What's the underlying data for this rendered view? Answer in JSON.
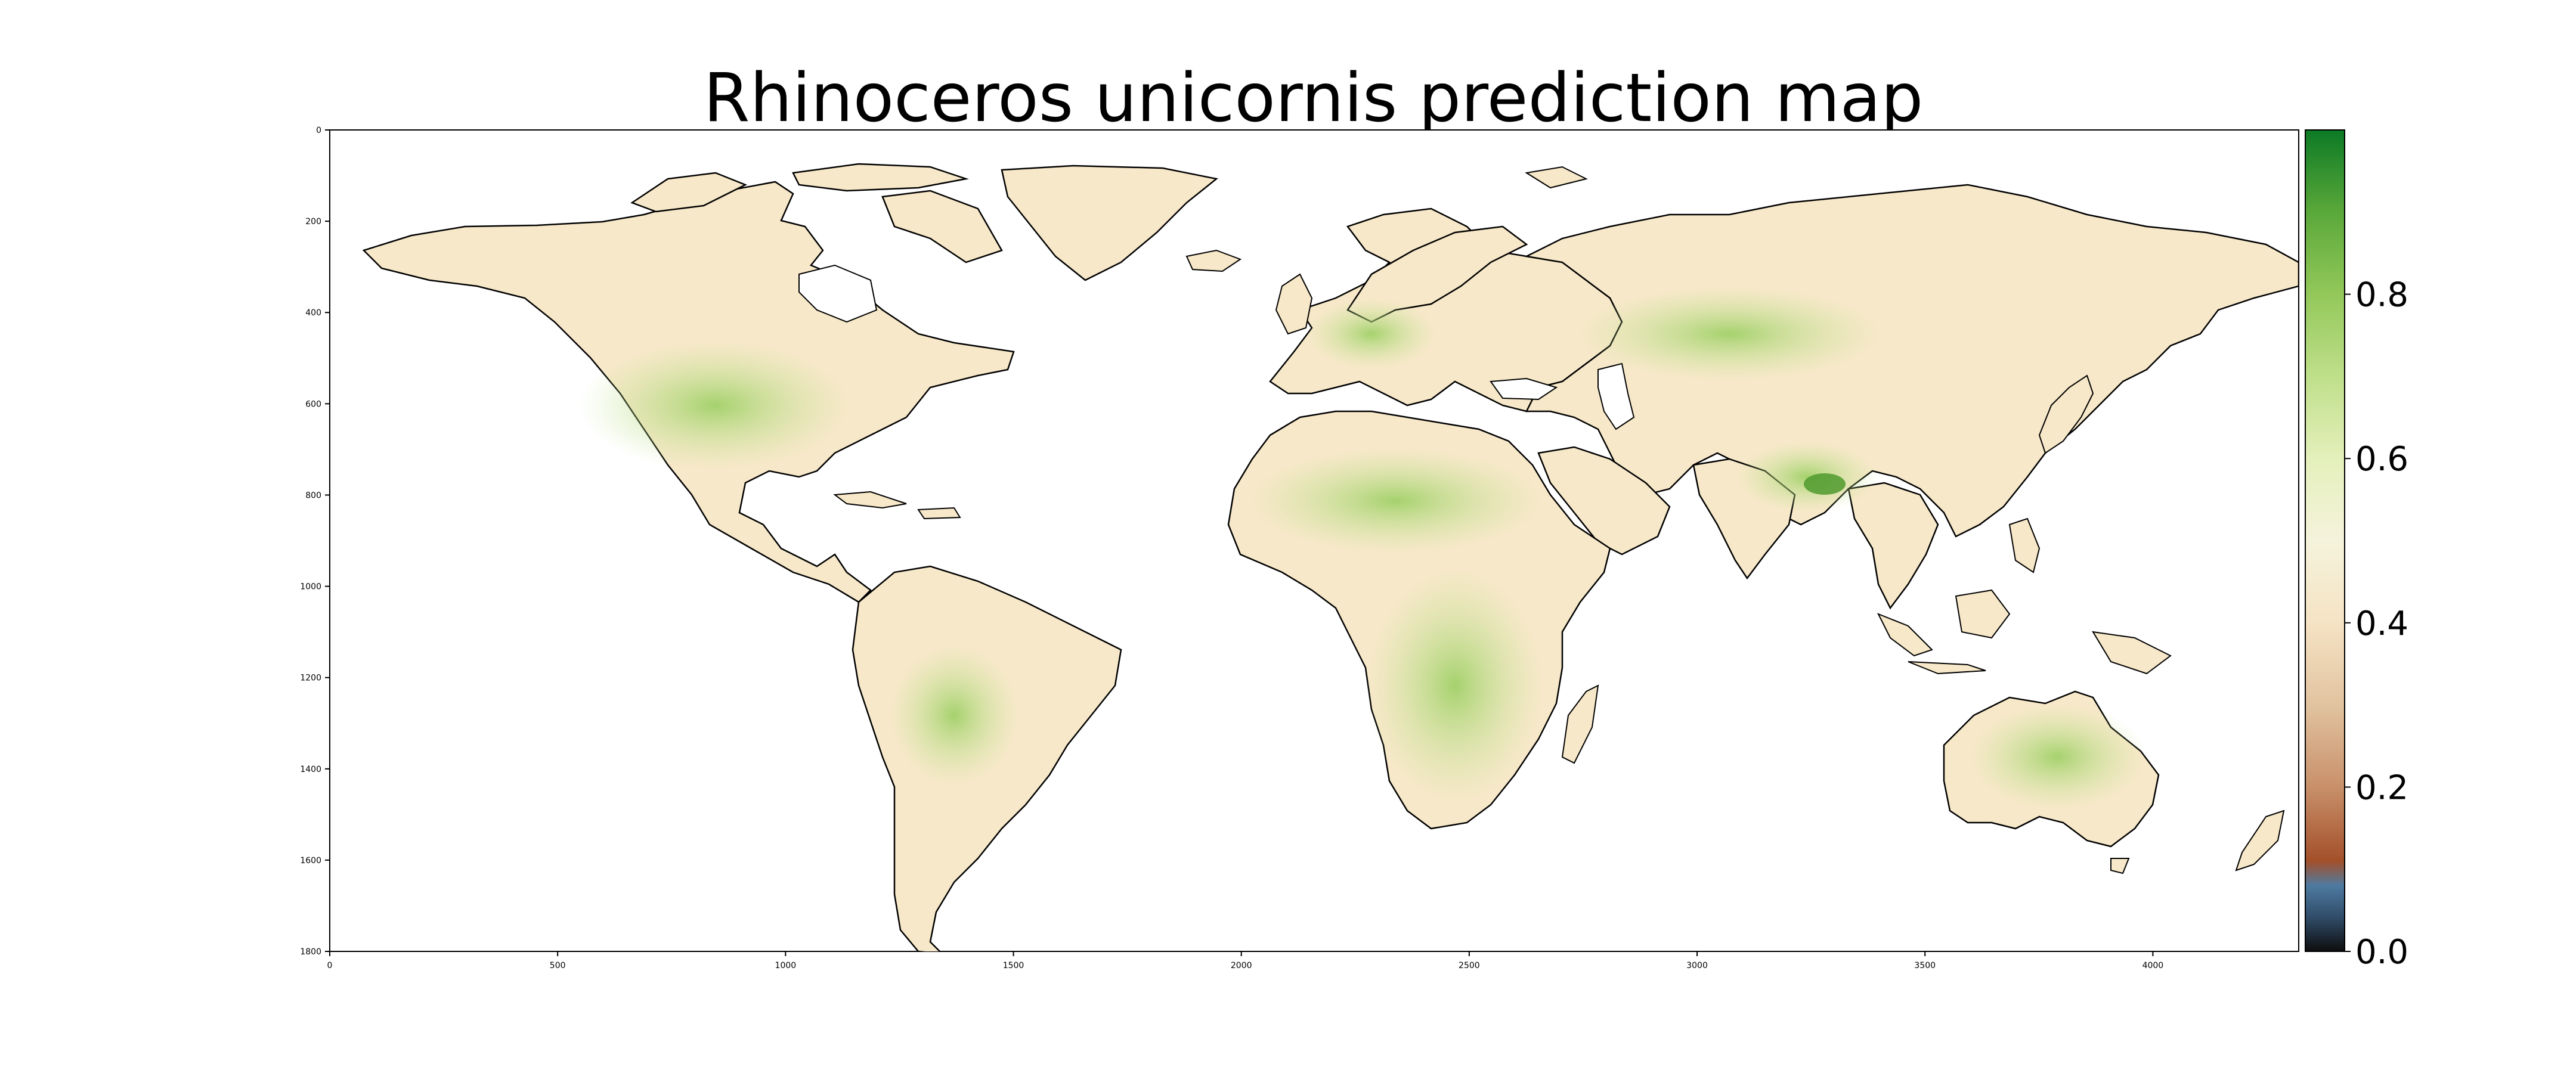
{
  "title": "Rhinoceros unicornis prediction map",
  "chart_data": {
    "type": "heatmap",
    "title": "Rhinoceros unicornis prediction map",
    "xlabel": "",
    "ylabel": "",
    "xlim": [
      0,
      4320
    ],
    "ylim": [
      1800,
      0
    ],
    "x_ticks": [
      0,
      500,
      1000,
      1500,
      2000,
      2500,
      3000,
      3500,
      4000
    ],
    "y_ticks": [
      0,
      200,
      400,
      600,
      800,
      1000,
      1200,
      1400,
      1600,
      1800
    ],
    "colorbar": {
      "range": [
        0.0,
        1.0
      ],
      "ticks": [
        "0.0",
        "0.2",
        "0.4",
        "0.6",
        "0.8"
      ],
      "tick_values": [
        0.0,
        0.2,
        0.4,
        0.6,
        0.8
      ],
      "colormap_stops": [
        {
          "value": 0.0,
          "color": "#0d0d0d"
        },
        {
          "value": 0.04,
          "color": "#2f4a66"
        },
        {
          "value": 0.08,
          "color": "#4e7aa1"
        },
        {
          "value": 0.11,
          "color": "#a3502a"
        },
        {
          "value": 0.2,
          "color": "#c8906a"
        },
        {
          "value": 0.3,
          "color": "#e2c3a0"
        },
        {
          "value": 0.4,
          "color": "#f5e3c4"
        },
        {
          "value": 0.5,
          "color": "#f5f3dc"
        },
        {
          "value": 0.6,
          "color": "#e4f0bb"
        },
        {
          "value": 0.7,
          "color": "#bfdf8a"
        },
        {
          "value": 0.8,
          "color": "#93c85a"
        },
        {
          "value": 0.9,
          "color": "#5aa83a"
        },
        {
          "value": 1.0,
          "color": "#0c7a25"
        }
      ]
    },
    "land_color": "#f7e8c9",
    "high_color": "#cfe7a0",
    "coast_color": "#000000"
  }
}
